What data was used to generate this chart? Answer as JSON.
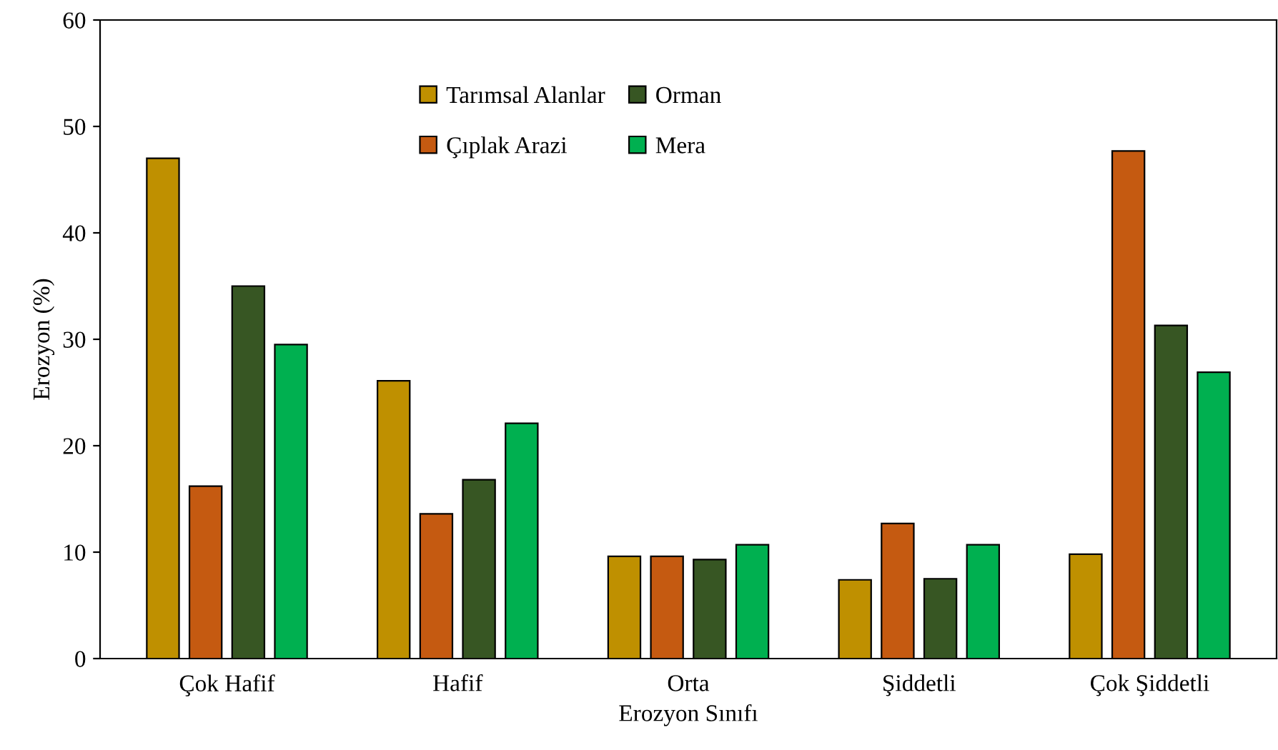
{
  "chart_data": {
    "type": "bar",
    "xlabel": "Erozyon Sınıfı",
    "ylabel": "Erozyon (%)",
    "categories": [
      "Çok Hafif",
      "Hafif",
      "Orta",
      "Şiddetli",
      "Çok Şiddetli"
    ],
    "series": [
      {
        "name": "Tarımsal Alanlar",
        "color": "#bf9000",
        "values": [
          47,
          26.1,
          9.6,
          7.4,
          9.8
        ]
      },
      {
        "name": "Çıplak Arazi",
        "color": "#c55a11",
        "values": [
          16.2,
          13.6,
          9.6,
          12.7,
          47.7
        ]
      },
      {
        "name": "Orman",
        "color": "#375623",
        "values": [
          35,
          16.8,
          9.3,
          7.5,
          31.3
        ]
      },
      {
        "name": "Mera",
        "color": "#00b050",
        "values": [
          29.5,
          22.1,
          10.7,
          10.7,
          26.9
        ]
      }
    ],
    "ylim": [
      0,
      60
    ],
    "yticks": [
      0,
      10,
      20,
      30,
      40,
      50,
      60
    ],
    "grid": false,
    "legend": "top"
  }
}
